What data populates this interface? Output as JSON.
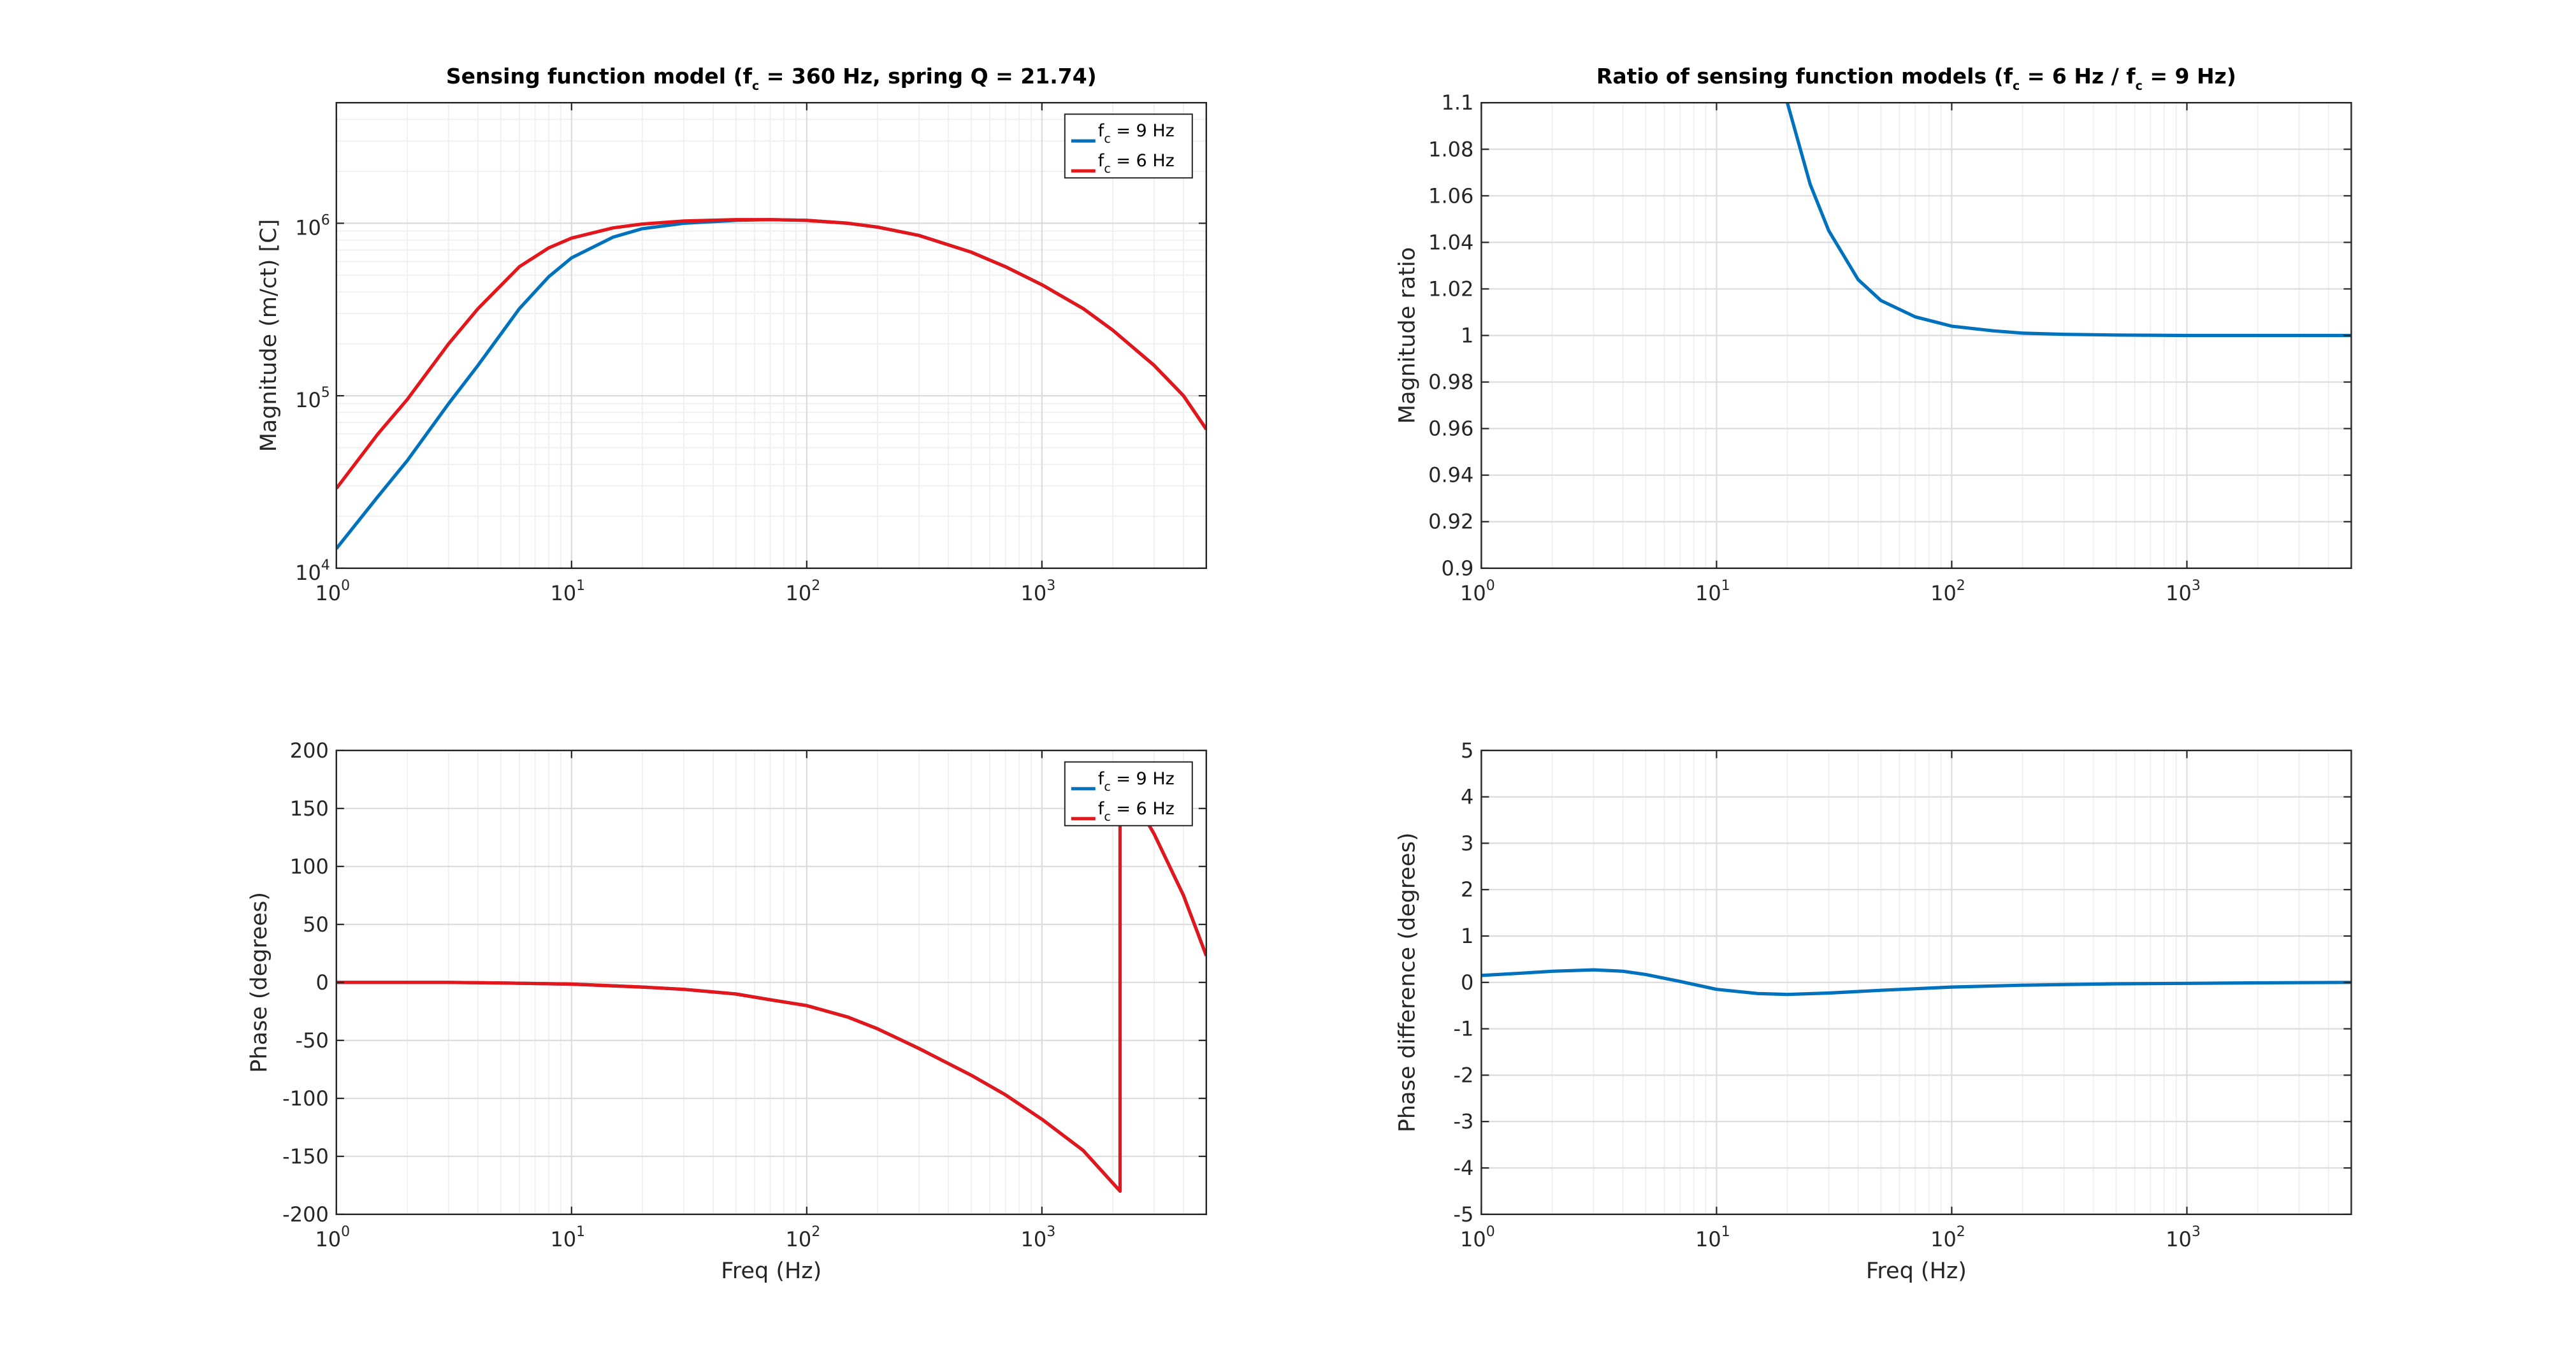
{
  "chart_data": [
    {
      "id": "mag",
      "type": "line",
      "title": {
        "pre": "Sensing function model (f",
        "sub": "c",
        "post": " = 360 Hz, spring Q = 21.74)"
      },
      "xlabel": "",
      "ylabel": "Magnitude (m/ct) [C]",
      "xscale": "log",
      "yscale": "log",
      "xlim": [
        1,
        5000
      ],
      "ylim": [
        10000,
        5000000
      ],
      "xticks": [
        1,
        10,
        100,
        1000
      ],
      "yticks": [
        10000,
        100000,
        1000000
      ],
      "grid": true,
      "legend": {
        "position": "top-right",
        "entries": [
          {
            "pre": "f",
            "sub": "c",
            "post": " = 9 Hz"
          },
          {
            "pre": "f",
            "sub": "c",
            "post": " = 6 Hz"
          }
        ]
      },
      "series": [
        {
          "color": "#0072BD",
          "points": [
            [
              1,
              13000
            ],
            [
              1.5,
              26000
            ],
            [
              2,
              42000
            ],
            [
              3,
              90000
            ],
            [
              4,
              150000
            ],
            [
              6,
              320000
            ],
            [
              8,
              490000
            ],
            [
              10,
              630000
            ],
            [
              15,
              830000
            ],
            [
              20,
              930000
            ],
            [
              30,
              1000000
            ],
            [
              50,
              1040000
            ],
            [
              70,
              1050000
            ],
            [
              100,
              1040000
            ],
            [
              150,
              1000000
            ],
            [
              200,
              950000
            ],
            [
              300,
              850000
            ],
            [
              500,
              680000
            ],
            [
              700,
              560000
            ],
            [
              1000,
              440000
            ],
            [
              1500,
              320000
            ],
            [
              2000,
              240000
            ],
            [
              3000,
              150000
            ],
            [
              4000,
              100000
            ],
            [
              5000,
              64000
            ]
          ]
        },
        {
          "color": "#E3161B",
          "points": [
            [
              1,
              29000
            ],
            [
              1.5,
              60000
            ],
            [
              2,
              95000
            ],
            [
              3,
              200000
            ],
            [
              4,
              320000
            ],
            [
              6,
              560000
            ],
            [
              8,
              720000
            ],
            [
              10,
              820000
            ],
            [
              15,
              940000
            ],
            [
              20,
              990000
            ],
            [
              30,
              1030000
            ],
            [
              50,
              1050000
            ],
            [
              70,
              1050000
            ],
            [
              100,
              1040000
            ],
            [
              150,
              1000000
            ],
            [
              200,
              950000
            ],
            [
              300,
              850000
            ],
            [
              500,
              680000
            ],
            [
              700,
              560000
            ],
            [
              1000,
              440000
            ],
            [
              1500,
              320000
            ],
            [
              2000,
              240000
            ],
            [
              3000,
              150000
            ],
            [
              4000,
              100000
            ],
            [
              5000,
              64000
            ]
          ]
        }
      ]
    },
    {
      "id": "ratio",
      "type": "line",
      "title": {
        "pre": "Ratio of sensing function models (f",
        "sub": "c",
        "mid": " = 6 Hz / f",
        "sub2": "c",
        "post": " = 9 Hz)"
      },
      "xlabel": "",
      "ylabel": "Magnitude ratio",
      "xscale": "log",
      "yscale": "linear",
      "xlim": [
        1,
        5000
      ],
      "ylim": [
        0.9,
        1.1
      ],
      "xticks": [
        1,
        10,
        100,
        1000
      ],
      "yticks": [
        0.9,
        0.92,
        0.94,
        0.96,
        0.98,
        1,
        1.02,
        1.04,
        1.06,
        1.08,
        1.1
      ],
      "grid": true,
      "series": [
        {
          "color": "#0072BD",
          "points": [
            [
              20,
              1.1
            ],
            [
              25,
              1.065
            ],
            [
              30,
              1.045
            ],
            [
              40,
              1.024
            ],
            [
              50,
              1.015
            ],
            [
              70,
              1.008
            ],
            [
              100,
              1.004
            ],
            [
              150,
              1.002
            ],
            [
              200,
              1.001
            ],
            [
              300,
              1.0005
            ],
            [
              500,
              1.0002
            ],
            [
              1000,
              1.0
            ],
            [
              5000,
              1.0
            ]
          ]
        }
      ]
    },
    {
      "id": "phase",
      "type": "line",
      "title": "",
      "xlabel": "Freq (Hz)",
      "ylabel": "Phase (degrees)",
      "xscale": "log",
      "yscale": "linear",
      "xlim": [
        1,
        5000
      ],
      "ylim": [
        -200,
        200
      ],
      "xticks": [
        1,
        10,
        100,
        1000
      ],
      "yticks": [
        -200,
        -150,
        -100,
        -50,
        0,
        50,
        100,
        150,
        200
      ],
      "grid": true,
      "legend": {
        "position": "top-right",
        "entries": [
          {
            "pre": "f",
            "sub": "c",
            "post": " = 9 Hz"
          },
          {
            "pre": "f",
            "sub": "c",
            "post": " = 6 Hz"
          }
        ]
      },
      "series": [
        {
          "color": "#0072BD",
          "points": [
            [
              1,
              0
            ],
            [
              3,
              0
            ],
            [
              5,
              -0.5
            ],
            [
              10,
              -1.5
            ],
            [
              20,
              -4
            ],
            [
              30,
              -6
            ],
            [
              50,
              -10
            ],
            [
              70,
              -15
            ],
            [
              100,
              -20
            ],
            [
              150,
              -30
            ],
            [
              200,
              -40
            ],
            [
              300,
              -57
            ],
            [
              500,
              -80
            ],
            [
              700,
              -97
            ],
            [
              1000,
              -118
            ],
            [
              1500,
              -145
            ],
            [
              2150,
              -180
            ],
            [
              2150,
              180
            ],
            [
              2600,
              150
            ],
            [
              3000,
              128
            ],
            [
              4000,
              75
            ],
            [
              5000,
              23
            ]
          ]
        },
        {
          "color": "#E3161B",
          "points": [
            [
              1,
              0
            ],
            [
              3,
              0
            ],
            [
              5,
              -0.5
            ],
            [
              10,
              -1.5
            ],
            [
              20,
              -4
            ],
            [
              30,
              -6
            ],
            [
              50,
              -10
            ],
            [
              70,
              -15
            ],
            [
              100,
              -20
            ],
            [
              150,
              -30
            ],
            [
              200,
              -40
            ],
            [
              300,
              -57
            ],
            [
              500,
              -80
            ],
            [
              700,
              -97
            ],
            [
              1000,
              -118
            ],
            [
              1500,
              -145
            ],
            [
              2150,
              -180
            ],
            [
              2150,
              180
            ],
            [
              2600,
              150
            ],
            [
              3000,
              128
            ],
            [
              4000,
              75
            ],
            [
              5000,
              23
            ]
          ]
        }
      ]
    },
    {
      "id": "phasediff",
      "type": "line",
      "title": "",
      "xlabel": "Freq (Hz)",
      "ylabel": "Phase difference (degrees)",
      "xscale": "log",
      "yscale": "linear",
      "xlim": [
        1,
        5000
      ],
      "ylim": [
        -5,
        5
      ],
      "xticks": [
        1,
        10,
        100,
        1000
      ],
      "yticks": [
        -5,
        -4,
        -3,
        -2,
        -1,
        0,
        1,
        2,
        3,
        4,
        5
      ],
      "grid": true,
      "series": [
        {
          "color": "#0072BD",
          "points": [
            [
              1,
              0.15
            ],
            [
              1.5,
              0.2
            ],
            [
              2,
              0.24
            ],
            [
              3,
              0.27
            ],
            [
              4,
              0.24
            ],
            [
              5,
              0.17
            ],
            [
              7,
              0.02
            ],
            [
              10,
              -0.15
            ],
            [
              15,
              -0.24
            ],
            [
              20,
              -0.26
            ],
            [
              30,
              -0.23
            ],
            [
              50,
              -0.17
            ],
            [
              100,
              -0.1
            ],
            [
              200,
              -0.06
            ],
            [
              500,
              -0.03
            ],
            [
              1000,
              -0.02
            ],
            [
              2000,
              -0.01
            ],
            [
              5000,
              0
            ]
          ]
        }
      ]
    }
  ]
}
